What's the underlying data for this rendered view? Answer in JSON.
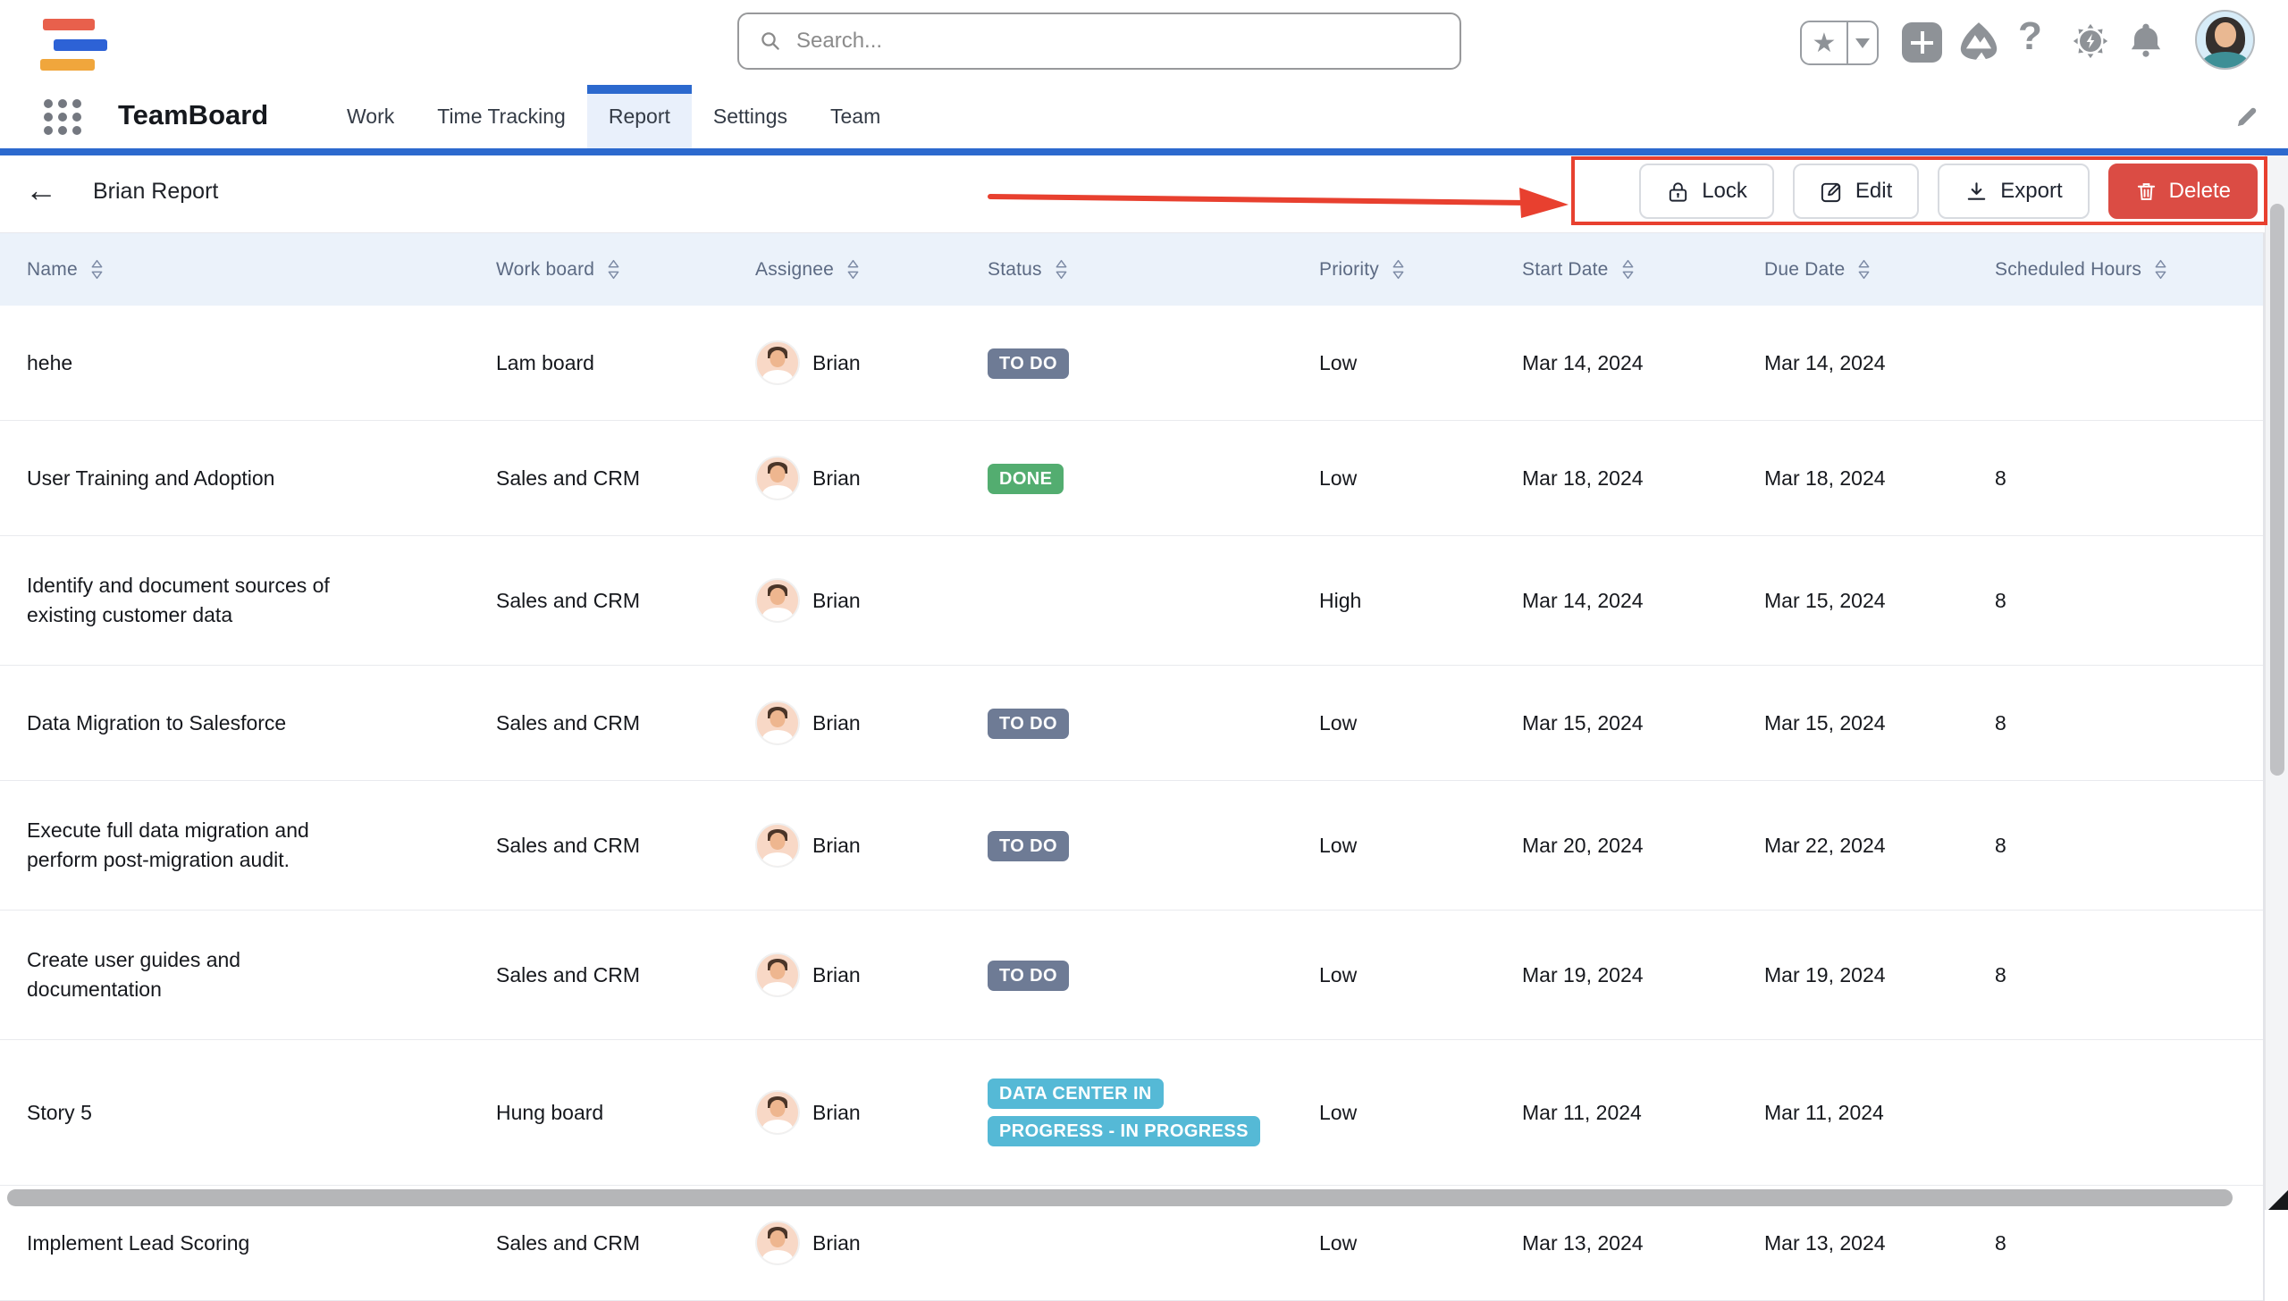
{
  "colors": {
    "accent_blue": "#2C69CE",
    "thead_bg": "#EBF2FA",
    "badge_todo": "#6E7B95",
    "badge_done": "#53AD70",
    "badge_inprogress": "#55B9D6",
    "danger_red": "#DB4C44",
    "highlight_red": "#E8402F",
    "logo_red": "#E8604C",
    "logo_blue": "#2D62D6",
    "logo_orange": "#F0A63C"
  },
  "topbar": {
    "search_placeholder": "Search...",
    "icons": [
      "favorite-star",
      "favorites-dropdown",
      "create-plus",
      "marketplace-mountains",
      "help-question",
      "settings-gear",
      "notifications-bell",
      "user-avatar"
    ],
    "help_glyph": "?"
  },
  "navbar": {
    "app_title": "TeamBoard",
    "items": [
      {
        "label": "Work",
        "active": false
      },
      {
        "label": "Time Tracking",
        "active": false
      },
      {
        "label": "Report",
        "active": true
      },
      {
        "label": "Settings",
        "active": false
      },
      {
        "label": "Team",
        "active": false
      }
    ]
  },
  "report": {
    "back_glyph": "←",
    "title": "Brian Report",
    "buttons": [
      {
        "label": "Lock",
        "icon": "lock-icon",
        "style": "default"
      },
      {
        "label": "Edit",
        "icon": "edit-icon",
        "style": "default"
      },
      {
        "label": "Export",
        "icon": "download-icon",
        "style": "default"
      },
      {
        "label": "Delete",
        "icon": "trash-icon",
        "style": "danger"
      }
    ]
  },
  "table": {
    "columns": [
      "Name",
      "Work board",
      "Assignee",
      "Status",
      "Priority",
      "Start Date",
      "Due Date",
      "Scheduled Hours"
    ],
    "rows": [
      {
        "name": "hehe",
        "work_board": "Lam board",
        "assignee": "Brian",
        "status": {
          "label": "TO DO",
          "kind": "todo"
        },
        "priority": "Low",
        "start_date": "Mar 14, 2024",
        "due_date": "Mar 14, 2024",
        "scheduled_hours": ""
      },
      {
        "name": "User Training and Adoption",
        "work_board": "Sales and CRM",
        "assignee": "Brian",
        "status": {
          "label": "DONE",
          "kind": "done"
        },
        "priority": "Low",
        "start_date": "Mar 18, 2024",
        "due_date": "Mar 18, 2024",
        "scheduled_hours": "8"
      },
      {
        "name": "Identify and document sources of\nexisting customer data",
        "work_board": "Sales and CRM",
        "assignee": "Brian",
        "status": null,
        "priority": "High",
        "start_date": "Mar 14, 2024",
        "due_date": "Mar 15, 2024",
        "scheduled_hours": "8"
      },
      {
        "name": "Data Migration to Salesforce",
        "work_board": "Sales and CRM",
        "assignee": "Brian",
        "status": {
          "label": "TO DO",
          "kind": "todo"
        },
        "priority": "Low",
        "start_date": "Mar 15, 2024",
        "due_date": "Mar 15, 2024",
        "scheduled_hours": "8"
      },
      {
        "name": "Execute full data migration and\nperform post-migration audit.",
        "work_board": "Sales and CRM",
        "assignee": "Brian",
        "status": {
          "label": "TO DO",
          "kind": "todo"
        },
        "priority": "Low",
        "start_date": "Mar 20, 2024",
        "due_date": "Mar 22, 2024",
        "scheduled_hours": "8"
      },
      {
        "name": "Create user guides and\ndocumentation",
        "work_board": "Sales and CRM",
        "assignee": "Brian",
        "status": {
          "label": "TO DO",
          "kind": "todo"
        },
        "priority": "Low",
        "start_date": "Mar 19, 2024",
        "due_date": "Mar 19, 2024",
        "scheduled_hours": "8"
      },
      {
        "name": "Story 5",
        "work_board": "Hung board",
        "assignee": "Brian",
        "status": {
          "label": "DATA CENTER IN\nPROGRESS - IN PROGRESS",
          "kind": "inprogress"
        },
        "priority": "Low",
        "start_date": "Mar 11, 2024",
        "due_date": "Mar 11, 2024",
        "scheduled_hours": ""
      },
      {
        "name": "Implement Lead Scoring",
        "work_board": "Sales and CRM",
        "assignee": "Brian",
        "status": null,
        "priority": "Low",
        "start_date": "Mar 13, 2024",
        "due_date": "Mar 13, 2024",
        "scheduled_hours": "8"
      }
    ]
  }
}
